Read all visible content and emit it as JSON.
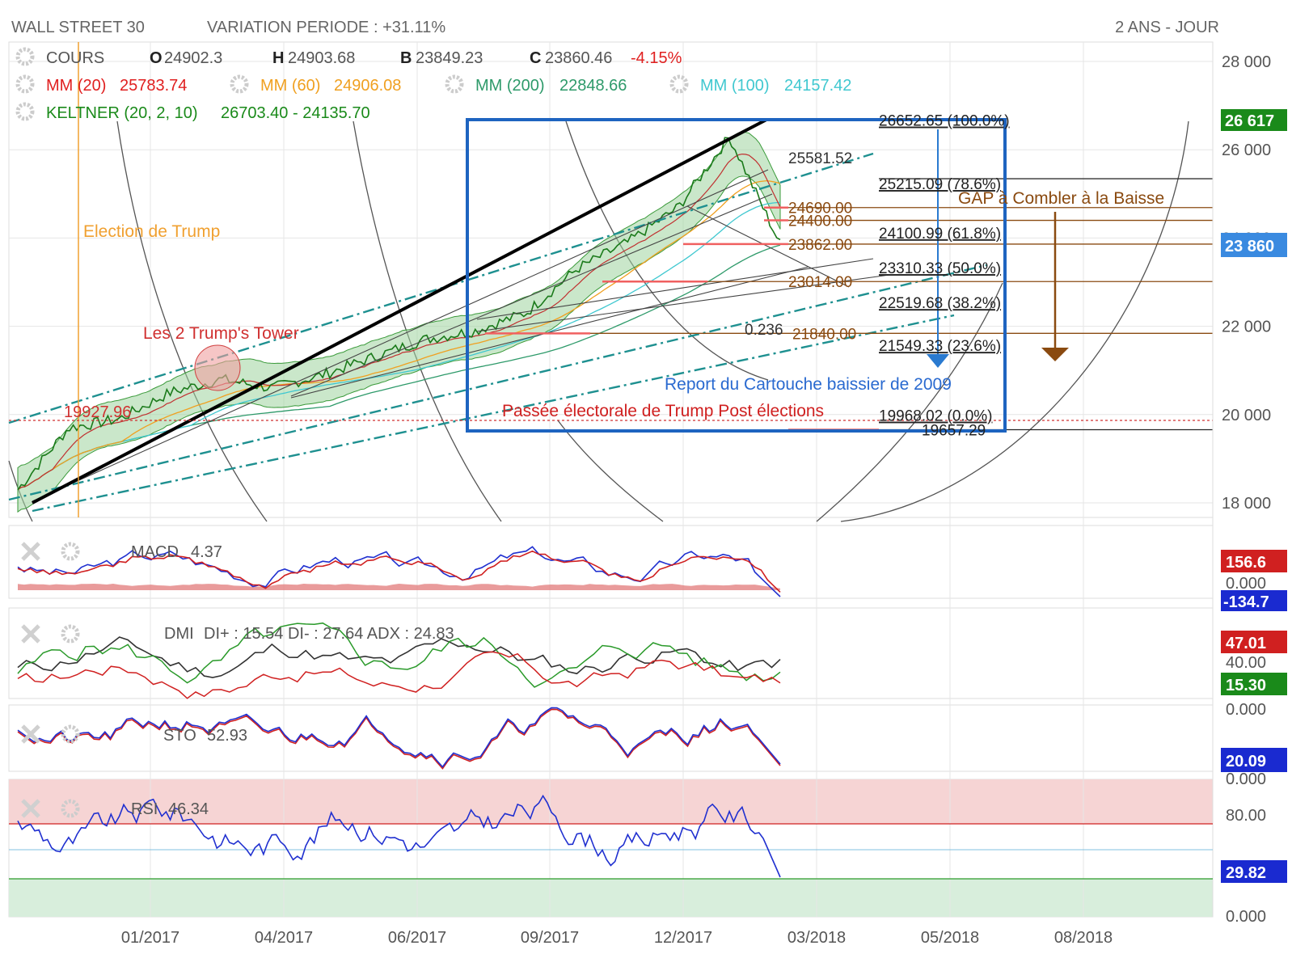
{
  "header": {
    "instrument": "WALL STREET 30",
    "variation": "VARIATION PERIODE : +31.11%",
    "period": "2 ANS - JOUR"
  },
  "legend": {
    "cours": {
      "label": "COURS",
      "o_label": "O",
      "o": "24902.3",
      "h_label": "H",
      "h": "24903.68",
      "b_label": "B",
      "b": "23849.23",
      "c_label": "C",
      "c": "23860.46",
      "change": "-4.15%"
    },
    "mm20": {
      "label": "MM (20)",
      "value": "25783.74",
      "color": "#e02020"
    },
    "mm60": {
      "label": "MM (60)",
      "value": "24906.08",
      "color": "#f0a020"
    },
    "mm200": {
      "label": "MM (200)",
      "value": "22848.66",
      "color": "#2e9a6a"
    },
    "mm100": {
      "label": "MM (100)",
      "value": "24157.42",
      "color": "#40c8d0"
    },
    "keltner": {
      "label": "KELTNER (20, 2, 10)",
      "value": "26703.40 - 24135.70",
      "color": "#1a8a1a"
    }
  },
  "annotations": {
    "election": "Election de Trump",
    "towers": "Les 2 Trump's Tower",
    "level_19927": "19927.96",
    "gap": "GAP à Combler à la Baisse",
    "report": "Report du Cartouche baissier de 2009",
    "passee": "Passée électorale de Trump Post élections",
    "fib_0236": "0.236",
    "top": "25581.52"
  },
  "fibonacci": [
    {
      "value": 26652.65,
      "label": "26652.65 (100.0%)"
    },
    {
      "value": 25215.09,
      "label": "25215.09 (78.6%)"
    },
    {
      "value": 24100.99,
      "label": "24100.99 (61.8%)"
    },
    {
      "value": 23310.33,
      "label": "23310.33 (50.0%)"
    },
    {
      "value": 22519.68,
      "label": "22519.68 (38.2%)"
    },
    {
      "value": 21549.33,
      "label": "21549.33 (23.6%)"
    },
    {
      "value": 19968.02,
      "label": "19968.02 (0.0%)"
    }
  ],
  "levels": [
    {
      "value": 24690,
      "label": "24690.00"
    },
    {
      "value": 24400,
      "label": "24400.00"
    },
    {
      "value": 23862,
      "label": "23862.00"
    },
    {
      "value": 23014,
      "label": "23014.00"
    },
    {
      "value": 21840,
      "label": "21840.00"
    },
    {
      "value": 19657.29,
      "label": "19657.29"
    }
  ],
  "price_axis": {
    "ticks": [
      "28 000",
      "26 000",
      "24 000",
      "22 000",
      "20 000",
      "18 000"
    ],
    "last_high": "26 617",
    "last_price": "23 860"
  },
  "x_axis": {
    "ticks": [
      "01/2017",
      "04/2017",
      "06/2017",
      "09/2017",
      "12/2017",
      "03/2018",
      "05/2018",
      "08/2018"
    ]
  },
  "indicators": {
    "macd": {
      "label": "MACD",
      "value": "4.37",
      "badge_top": "156.6",
      "mid": "0.000",
      "badge_bottom": "-134.7"
    },
    "dmi": {
      "label": "DMI",
      "text": "DI+ : 15.54 DI- : 27.64 ADX : 24.83",
      "badge_red": "47.01",
      "mid": "40.00",
      "badge_green": "15.30",
      "bottom": "0.000"
    },
    "sto": {
      "label": "STO",
      "value": "52.93",
      "badge": "20.09",
      "bottom": "0.000"
    },
    "rsi": {
      "label": "RSI",
      "value": "46.34",
      "top": "80.00",
      "badge": "29.82",
      "bottom": "0.000"
    }
  },
  "chart_data": {
    "type": "line",
    "title": "WALL STREET 30",
    "x": [
      "2016-11",
      "2016-12",
      "2017-01",
      "2017-02",
      "2017-03",
      "2017-04",
      "2017-05",
      "2017-06",
      "2017-07",
      "2017-08",
      "2017-09",
      "2017-10",
      "2017-11",
      "2017-12",
      "2018-01",
      "2018-02"
    ],
    "series": [
      {
        "name": "COURS",
        "values": [
          18300,
          19700,
          19900,
          20500,
          20800,
          20600,
          20900,
          21300,
          21700,
          21900,
          22300,
          23300,
          23900,
          24700,
          26300,
          23860
        ]
      }
    ],
    "ylim": [
      17700,
      28300
    ]
  }
}
